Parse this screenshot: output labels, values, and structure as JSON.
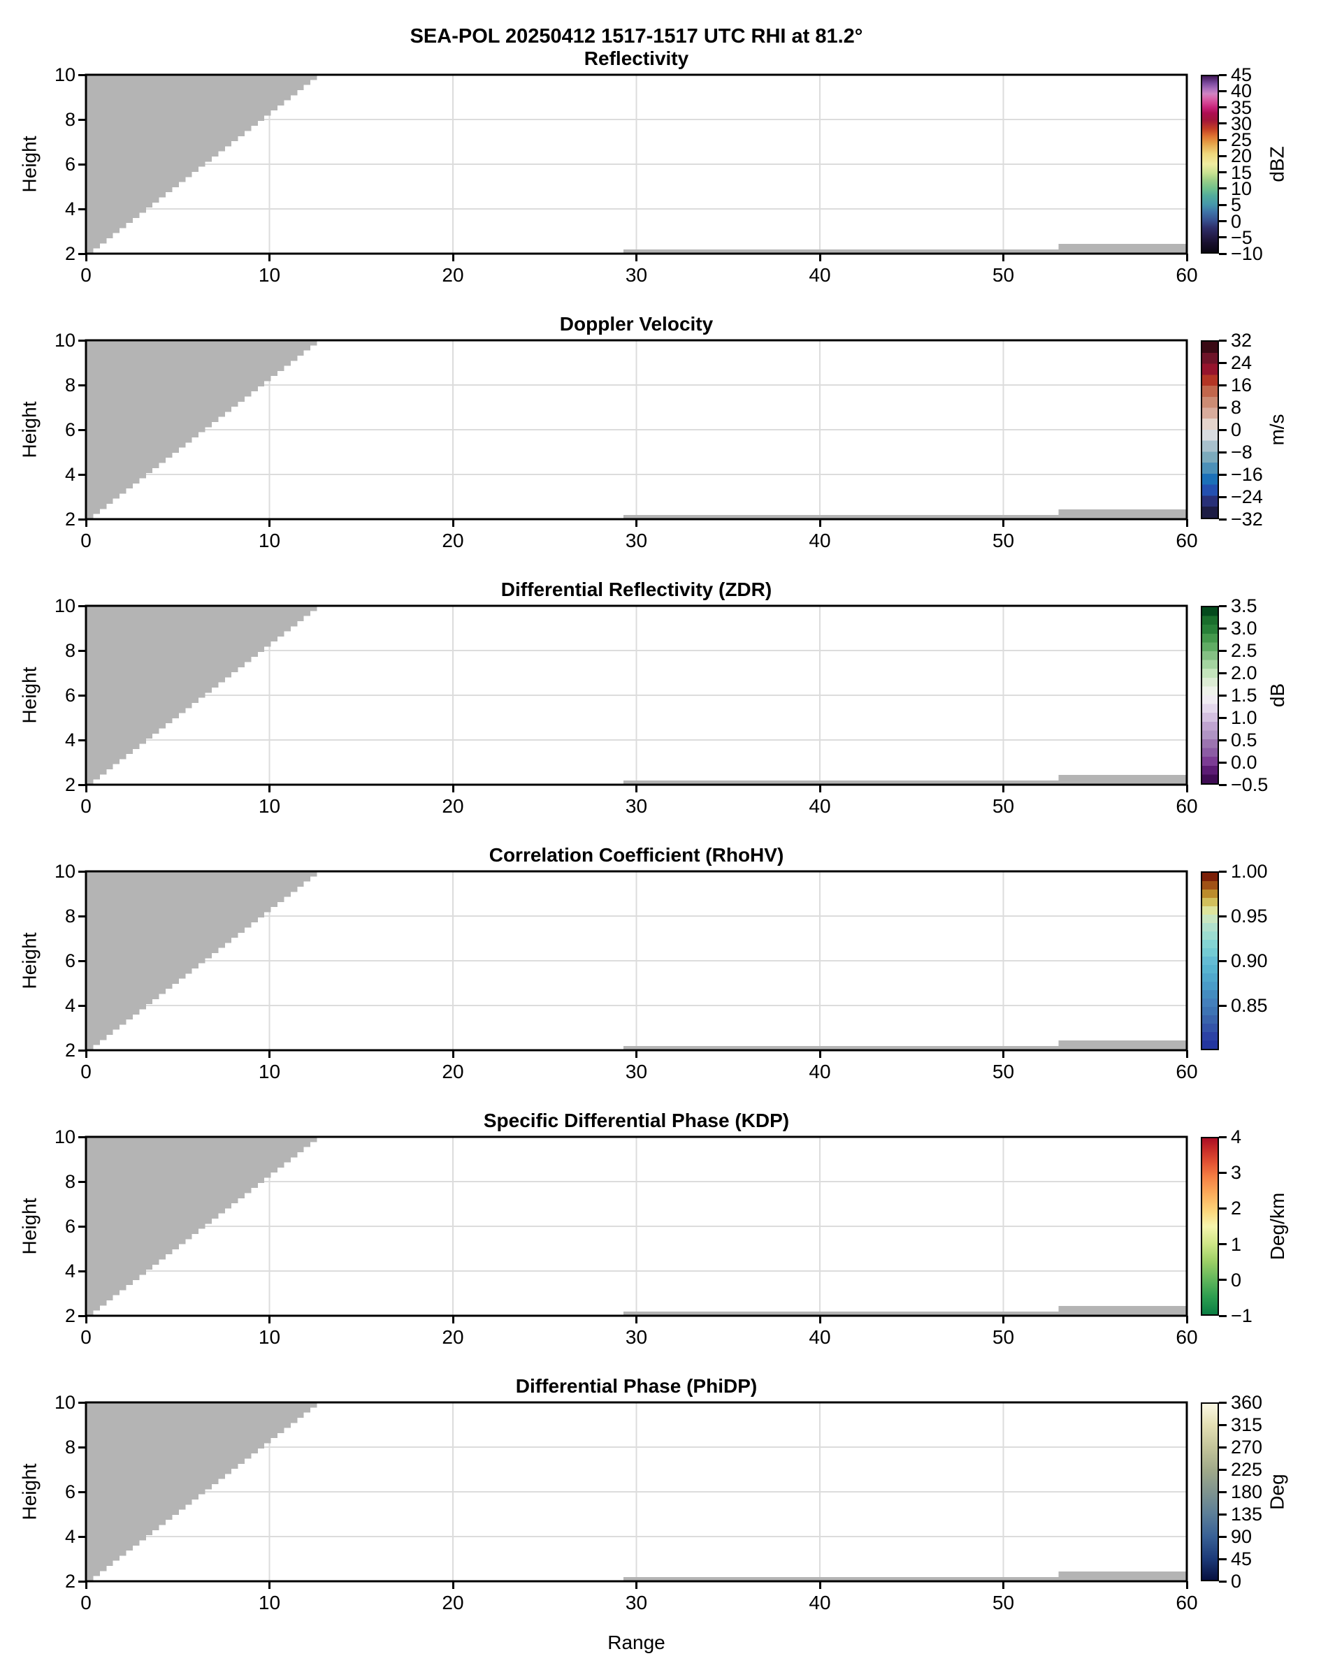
{
  "header": {
    "title": "SEA-POL 20250412 1517-1517 UTC RHI at 81.2°"
  },
  "axes": {
    "x_label": "Range",
    "y_label": "Height",
    "x_range": [
      0,
      60
    ],
    "y_range": [
      2,
      10
    ],
    "x_ticks": [
      {
        "label": "0",
        "value": 0
      },
      {
        "label": "10",
        "value": 10
      },
      {
        "label": "20",
        "value": 20
      },
      {
        "label": "30",
        "value": 30
      },
      {
        "label": "40",
        "value": 40
      },
      {
        "label": "50",
        "value": 50
      },
      {
        "label": "60",
        "value": 60
      }
    ],
    "y_ticks": [
      {
        "label": "10",
        "value": 10
      },
      {
        "label": "8",
        "value": 8
      },
      {
        "label": "6",
        "value": 6
      },
      {
        "label": "4",
        "value": 4
      },
      {
        "label": "2",
        "value": 2
      }
    ]
  },
  "style": {
    "mask_color": "#b4b4b4",
    "grid_color": "#dcdcdc",
    "text_color": "#000000",
    "background": "#ffffff"
  },
  "chart_data": {
    "type": "heatmap",
    "title": "SEA-POL 20250412 1517-1517 UTC RHI at 81.2°",
    "subtitle_note": "Six stacked RHI cross-section panels sharing identical axes; all plotted echo regions are masked gray (no colored data values visible)",
    "xlabel": "Range",
    "ylabel": "Height",
    "xlim": [
      0,
      60
    ],
    "ylim": [
      2,
      10
    ],
    "grid": true,
    "masked_regions": {
      "wedge": {
        "description": "stair-stepped gray wedge filling upper-left of each panel",
        "from": [
          0.4,
          2.0
        ],
        "to": [
          12.95,
          10.0
        ],
        "steps": 35
      },
      "strips": [
        {
          "x0": 29.3,
          "x1": 60.0,
          "y0": 2.0,
          "y1": 2.19
        },
        {
          "x0": 53.0,
          "x1": 60.0,
          "y0": 2.0,
          "y1": 2.44
        }
      ]
    },
    "panels": [
      {
        "title": "Reflectivity",
        "unit": "dBZ",
        "cb": {
          "min": -10,
          "max": 45,
          "ticks": [
            {
              "label": "45",
              "value": 45
            },
            {
              "label": "40",
              "value": 40
            },
            {
              "label": "35",
              "value": 35
            },
            {
              "label": "30",
              "value": 30
            },
            {
              "label": "25",
              "value": 25
            },
            {
              "label": "20",
              "value": 20
            },
            {
              "label": "15",
              "value": 15
            },
            {
              "label": "10",
              "value": 10
            },
            {
              "label": "5",
              "value": 5
            },
            {
              "label": "0",
              "value": 0
            },
            {
              "label": "−5",
              "value": -5
            },
            {
              "label": "−10",
              "value": -10
            }
          ],
          "stops": [
            [
              "0%",
              "#0b0712"
            ],
            [
              "5%",
              "#170f2c"
            ],
            [
              "9%",
              "#241c47"
            ],
            [
              "14%",
              "#2e2f6b"
            ],
            [
              "18%",
              "#37508f"
            ],
            [
              "23%",
              "#3f74a8"
            ],
            [
              "27%",
              "#4697ab"
            ],
            [
              "32%",
              "#52ab9c"
            ],
            [
              "36%",
              "#6fc08d"
            ],
            [
              "41%",
              "#9ccf87"
            ],
            [
              "45%",
              "#c8e191"
            ],
            [
              "50%",
              "#f0eda1"
            ],
            [
              "56%",
              "#efd77c"
            ],
            [
              "62%",
              "#e5a047"
            ],
            [
              "66%",
              "#de7231"
            ],
            [
              "70%",
              "#c43f25"
            ],
            [
              "75%",
              "#a3163a"
            ],
            [
              "79%",
              "#ad0e52"
            ],
            [
              "82%",
              "#c62278"
            ],
            [
              "85%",
              "#d44694"
            ],
            [
              "88%",
              "#d76bb0"
            ],
            [
              "90%",
              "#cf84c2"
            ],
            [
              "93%",
              "#a86cbb"
            ],
            [
              "96%",
              "#7b4a9e"
            ],
            [
              "100%",
              "#411758"
            ]
          ]
        }
      },
      {
        "title": "Doppler Velocity",
        "unit": "m/s",
        "cb": {
          "min": -32,
          "max": 32,
          "ticks": [
            {
              "label": "32",
              "value": 32
            },
            {
              "label": "24",
              "value": 24
            },
            {
              "label": "16",
              "value": 16
            },
            {
              "label": "8",
              "value": 8
            },
            {
              "label": "0",
              "value": 0
            },
            {
              "label": "−8",
              "value": -8
            },
            {
              "label": "−16",
              "value": -16
            },
            {
              "label": "−24",
              "value": -24
            },
            {
              "label": "−32",
              "value": -32
            }
          ],
          "blocks": [
            "#1c1c44",
            "#283078",
            "#2450b0",
            "#1c70b8",
            "#4c90b8",
            "#7caabc",
            "#a8c0cc",
            "#d8dce0",
            "#e4d4cc",
            "#d8ac9c",
            "#cc8c74",
            "#c2674c",
            "#b43524",
            "#96142c",
            "#6e1428",
            "#3a0a14"
          ]
        }
      },
      {
        "title": "Differential Reflectivity (ZDR)",
        "unit": "dB",
        "cb": {
          "min": -0.5,
          "max": 3.5,
          "ticks": [
            {
              "label": "3.5",
              "value": 3.5
            },
            {
              "label": "3.0",
              "value": 3.0
            },
            {
              "label": "2.5",
              "value": 2.5
            },
            {
              "label": "2.0",
              "value": 2.0
            },
            {
              "label": "1.5",
              "value": 1.5
            },
            {
              "label": "1.0",
              "value": 1.0
            },
            {
              "label": "0.5",
              "value": 0.5
            },
            {
              "label": "0.0",
              "value": 0.0
            },
            {
              "label": "−0.5",
              "value": -0.5
            }
          ],
          "blocks": [
            "#400c54",
            "#5c1c74",
            "#7c3c94",
            "#8c5ca4",
            "#9c74b0",
            "#b094c4",
            "#c0a4d0",
            "#d4c0e0",
            "#e4d8ec",
            "#f0ecf2",
            "#eef2ea",
            "#dcecd4",
            "#c4e4bc",
            "#a4d4a0",
            "#84c084",
            "#60ac64",
            "#44984c",
            "#288038",
            "#1a6e2c",
            "#044a1c"
          ]
        }
      },
      {
        "title": "Correlation Coefficient (RhoHV)",
        "unit": null,
        "cb": {
          "min": 0.8,
          "max": 1.0,
          "ticks": [
            {
              "label": "1.00",
              "value": 1.0
            },
            {
              "label": "0.95",
              "value": 0.95
            },
            {
              "label": "0.90",
              "value": 0.9
            },
            {
              "label": "0.85",
              "value": 0.85
            }
          ],
          "blocks": [
            "#2436a0",
            "#2c42a4",
            "#3454a8",
            "#3a64ac",
            "#3e74b4",
            "#4480bc",
            "#448cc0",
            "#4a9cc8",
            "#50a8cc",
            "#58b4d0",
            "#64bcd4",
            "#74cbd4",
            "#84d4d4",
            "#9cdcd0",
            "#b0e0cc",
            "#c8e6c0",
            "#dde49c",
            "#d2c05c",
            "#bc8c2c",
            "#a05216",
            "#7c2008"
          ]
        }
      },
      {
        "title": "Specific Differential Phase (KDP)",
        "unit": "Deg/km",
        "cb": {
          "min": -1,
          "max": 4,
          "ticks": [
            {
              "label": "4",
              "value": 4
            },
            {
              "label": "3",
              "value": 3
            },
            {
              "label": "2",
              "value": 2
            },
            {
              "label": "1",
              "value": 1
            },
            {
              "label": "0",
              "value": 0
            },
            {
              "label": "−1",
              "value": -1
            }
          ],
          "stops": [
            [
              "0%",
              "#0b7e44"
            ],
            [
              "10%",
              "#2d9e50"
            ],
            [
              "20%",
              "#63b75c"
            ],
            [
              "30%",
              "#9ccf66"
            ],
            [
              "40%",
              "#cfe687"
            ],
            [
              "50%",
              "#f6f5ae"
            ],
            [
              "58%",
              "#fcd97e"
            ],
            [
              "68%",
              "#fbae5c"
            ],
            [
              "78%",
              "#f58044"
            ],
            [
              "86%",
              "#e35433"
            ],
            [
              "94%",
              "#c62b28"
            ],
            [
              "100%",
              "#ab0e24"
            ]
          ]
        }
      },
      {
        "title": "Differential Phase (PhiDP)",
        "unit": "Deg",
        "cb": {
          "min": 0,
          "max": 360,
          "ticks": [
            {
              "label": "360",
              "value": 360
            },
            {
              "label": "315",
              "value": 315
            },
            {
              "label": "270",
              "value": 270
            },
            {
              "label": "225",
              "value": 225
            },
            {
              "label": "180",
              "value": 180
            },
            {
              "label": "135",
              "value": 135
            },
            {
              "label": "90",
              "value": 90
            },
            {
              "label": "45",
              "value": 45
            },
            {
              "label": "0",
              "value": 0
            }
          ],
          "stops": [
            [
              "0%",
              "#071040"
            ],
            [
              "12%",
              "#1c3a78"
            ],
            [
              "25%",
              "#3a6296"
            ],
            [
              "38%",
              "#5e8098"
            ],
            [
              "50%",
              "#7f948f"
            ],
            [
              "62%",
              "#9fa98a"
            ],
            [
              "75%",
              "#c3c49a"
            ],
            [
              "88%",
              "#e4e0b4"
            ],
            [
              "100%",
              "#fbf8e4"
            ]
          ]
        }
      }
    ]
  }
}
